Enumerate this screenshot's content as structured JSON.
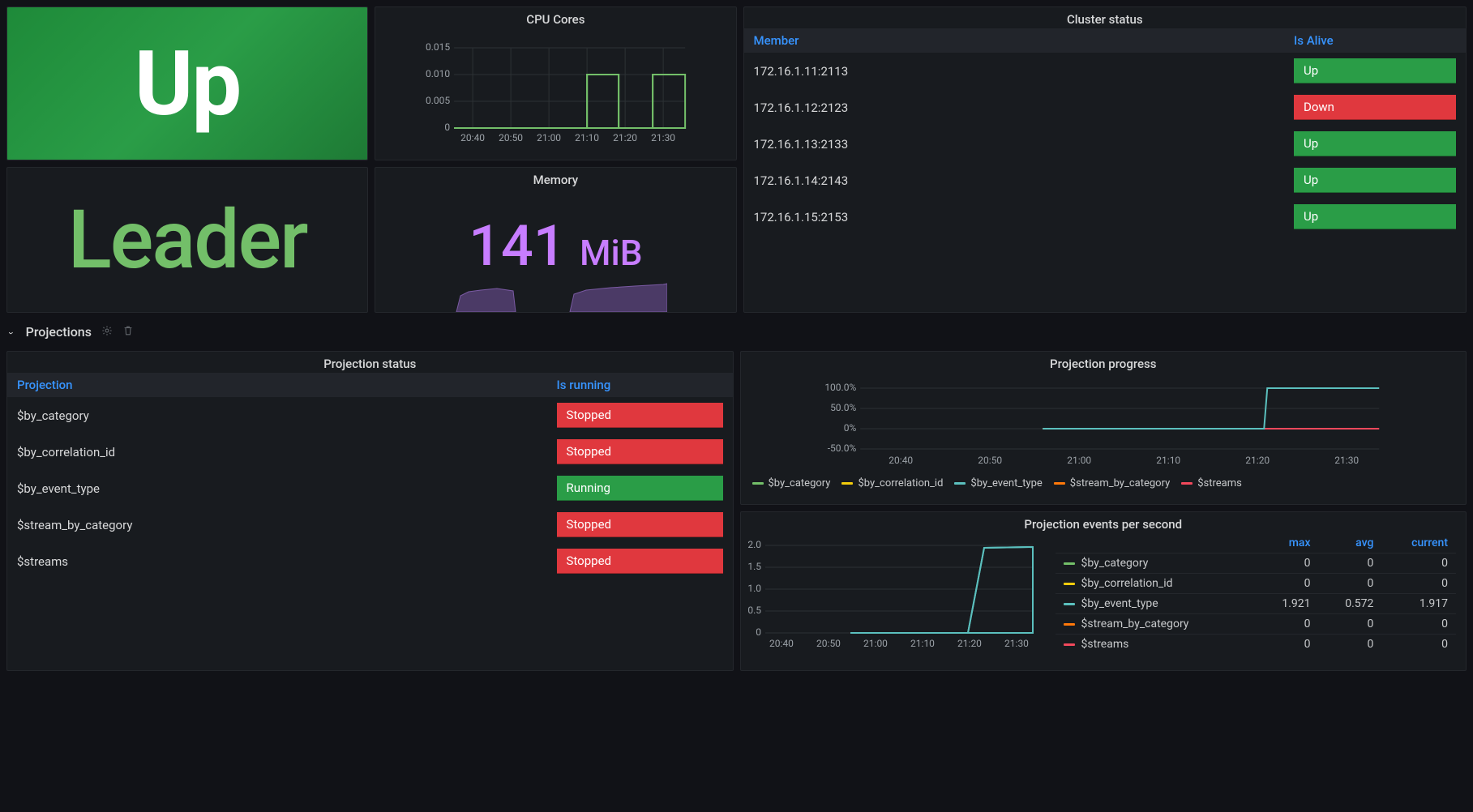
{
  "colors": {
    "green": "#73bf69",
    "yellow": "#f2cc0c",
    "teal": "#5bc0be",
    "orange": "#ff780a",
    "red": "#f2495c",
    "purple": "#c77dff",
    "badge_up": "#2a9d47",
    "badge_down": "#e0383e",
    "link": "#3794ff"
  },
  "stat_up": {
    "value": "Up"
  },
  "stat_leader": {
    "value": "Leader"
  },
  "cpu": {
    "title": "CPU Cores",
    "ylim": [
      0,
      0.015
    ],
    "yticks": [
      "0",
      "0.005",
      "0.010",
      "0.015"
    ],
    "xticks": [
      "20:40",
      "20:50",
      "21:00",
      "21:10",
      "21:20",
      "21:30"
    ],
    "line1": [
      0,
      0,
      0,
      0,
      0,
      0,
      0,
      0,
      0,
      0,
      0,
      0,
      0,
      0.01,
      0.01,
      0.01,
      0,
      0,
      0.01,
      0.01
    ],
    "line2_offset": 0,
    "line_color": "#73bf69"
  },
  "memory": {
    "title": "Memory",
    "value": "141",
    "unit": "MiB"
  },
  "cluster": {
    "title": "Cluster status",
    "columns": [
      "Member",
      "Is Alive"
    ],
    "rows": [
      {
        "member": "172.16.1.11:2113",
        "status": "Up",
        "class": "up"
      },
      {
        "member": "172.16.1.12:2123",
        "status": "Down",
        "class": "down"
      },
      {
        "member": "172.16.1.13:2133",
        "status": "Up",
        "class": "up"
      },
      {
        "member": "172.16.1.14:2143",
        "status": "Up",
        "class": "up"
      },
      {
        "member": "172.16.1.15:2153",
        "status": "Up",
        "class": "up"
      }
    ]
  },
  "section": {
    "title": "Projections"
  },
  "progress": {
    "title": "Projection progress",
    "yticks": [
      "-50.0%",
      "0%",
      "50.0%",
      "100.0%"
    ],
    "xticks": [
      "20:40",
      "20:50",
      "21:00",
      "21:10",
      "21:20",
      "21:30"
    ],
    "series": [
      {
        "name": "$by_category",
        "color": "#73bf69"
      },
      {
        "name": "$by_correlation_id",
        "color": "#f2cc0c"
      },
      {
        "name": "$by_event_type",
        "color": "#5bc0be"
      },
      {
        "name": "$stream_by_category",
        "color": "#ff780a"
      },
      {
        "name": "$streams",
        "color": "#f2495c"
      }
    ]
  },
  "events": {
    "title": "Projection events per second",
    "yticks": [
      "0",
      "0.5",
      "1.0",
      "1.5",
      "2.0"
    ],
    "xticks": [
      "20:40",
      "20:50",
      "21:00",
      "21:10",
      "21:20",
      "21:30"
    ],
    "cols": [
      "",
      "max",
      "avg",
      "current"
    ],
    "rows": [
      {
        "name": "$by_category",
        "color": "#73bf69",
        "max": "0",
        "avg": "0",
        "current": "0"
      },
      {
        "name": "$by_correlation_id",
        "color": "#f2cc0c",
        "max": "0",
        "avg": "0",
        "current": "0"
      },
      {
        "name": "$by_event_type",
        "color": "#5bc0be",
        "max": "1.921",
        "avg": "0.572",
        "current": "1.917"
      },
      {
        "name": "$stream_by_category",
        "color": "#ff780a",
        "max": "0",
        "avg": "0",
        "current": "0"
      },
      {
        "name": "$streams",
        "color": "#f2495c",
        "max": "0",
        "avg": "0",
        "current": "0"
      }
    ]
  },
  "proj_status": {
    "title": "Projection status",
    "columns": [
      "Projection",
      "Is running"
    ],
    "rows": [
      {
        "name": "$by_category",
        "status": "Stopped",
        "class": "stopped"
      },
      {
        "name": "$by_correlation_id",
        "status": "Stopped",
        "class": "stopped"
      },
      {
        "name": "$by_event_type",
        "status": "Running",
        "class": "running"
      },
      {
        "name": "$stream_by_category",
        "status": "Stopped",
        "class": "stopped"
      },
      {
        "name": "$streams",
        "status": "Stopped",
        "class": "stopped"
      }
    ]
  }
}
